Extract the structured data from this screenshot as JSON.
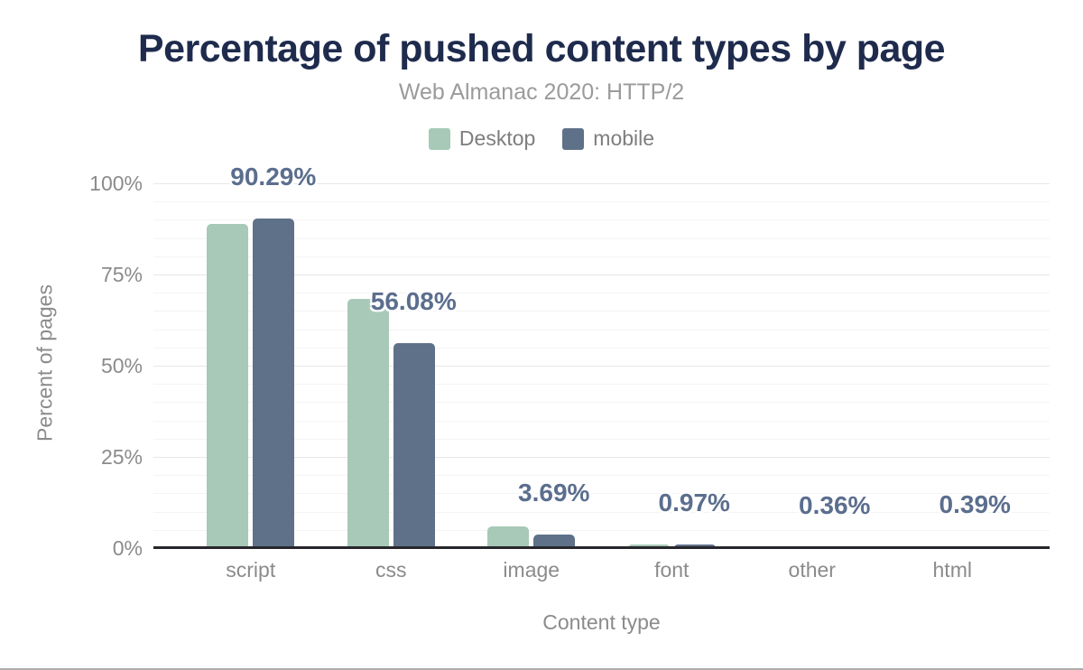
{
  "chart": {
    "title": "Percentage of pushed content types by page",
    "subtitle": "Web Almanac 2020: HTTP/2",
    "xlabel": "Content type",
    "ylabel": "Percent of pages",
    "colors": {
      "title": "#1e2b4d",
      "subtitle_gray": "#9b9b9b",
      "axis_gray": "#8b8b8b",
      "desktop_green": "#a8c9b8",
      "mobile_slate": "#5f7189",
      "value_label": "#5b6e8e",
      "axis_line": "#26262b",
      "grid_minor": "#f4f4f4",
      "grid_major": "#e7e7e7",
      "page_bottom_border": "#adadad"
    },
    "legend": [
      {
        "label": "Desktop",
        "color": "#a8c9b8"
      },
      {
        "label": "mobile",
        "color": "#5f7189"
      }
    ]
  },
  "chart_data": {
    "type": "bar",
    "title": "Percentage of pushed content types by page",
    "subtitle": "Web Almanac 2020: HTTP/2",
    "categories": [
      "script",
      "css",
      "image",
      "font",
      "other",
      "html"
    ],
    "series": [
      {
        "name": "Desktop",
        "color": "#a8c9b8",
        "values": [
          88.8,
          68.2,
          6.0,
          1.1,
          0.6,
          0.6
        ]
      },
      {
        "name": "mobile",
        "color": "#5f7189",
        "values": [
          90.29,
          56.08,
          3.69,
          0.97,
          0.36,
          0.39
        ]
      }
    ],
    "value_labels": [
      "90.29%",
      "56.08%",
      "3.69%",
      "0.97%",
      "0.36%",
      "0.39%"
    ],
    "value_labels_series": "mobile",
    "xlabel": "Content type",
    "ylabel": "Percent of pages",
    "ylim": [
      0,
      100
    ],
    "yticks": [
      {
        "value": 0,
        "label": "0%"
      },
      {
        "value": 25,
        "label": "25%"
      },
      {
        "value": 50,
        "label": "50%"
      },
      {
        "value": 75,
        "label": "75%"
      },
      {
        "value": 100,
        "label": "100%"
      }
    ],
    "grid": {
      "minor_step": 5,
      "major_step": 25
    },
    "legend_position": "top"
  }
}
